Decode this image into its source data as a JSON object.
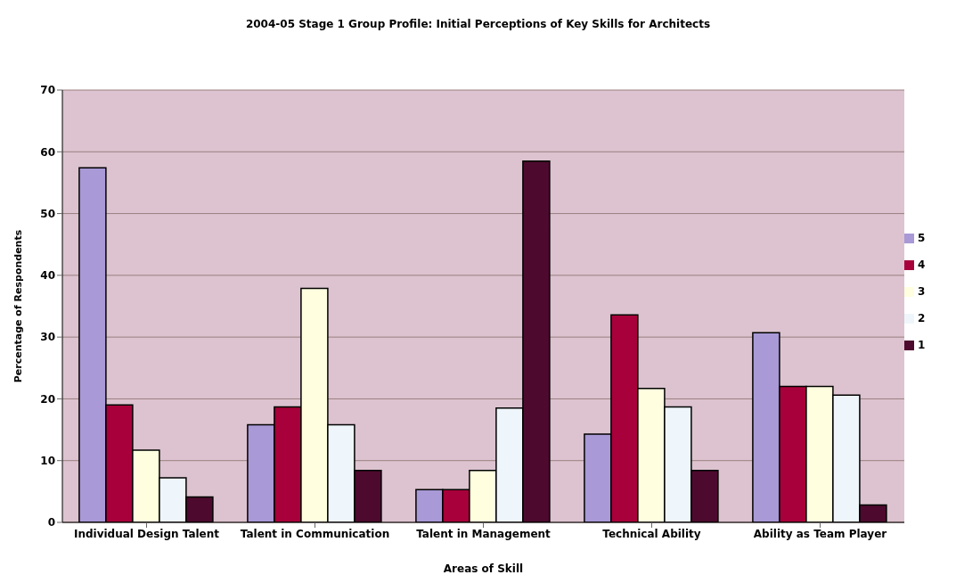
{
  "chart_data": {
    "type": "bar",
    "title": "2004-05 Stage 1 Group Profile: Initial Perceptions of Key Skills for Architects",
    "xlabel": "Areas of Skill",
    "ylabel": "Percentage of Respondents",
    "categories": [
      "Individual Design Talent",
      "Talent in Communication",
      "Talent in Management",
      "Technical Ability",
      "Ability as Team Player"
    ],
    "series": [
      {
        "name": "5",
        "color": "#a999d6",
        "values": [
          57.4,
          15.8,
          5.3,
          14.3,
          30.7
        ]
      },
      {
        "name": "4",
        "color": "#a8003a",
        "values": [
          19,
          18.7,
          5.3,
          33.6,
          22
        ]
      },
      {
        "name": "3",
        "color": "#ffffe0",
        "values": [
          11.7,
          37.9,
          8.4,
          21.7,
          22
        ]
      },
      {
        "name": "2",
        "color": "#eef6fb",
        "values": [
          7.2,
          15.8,
          18.5,
          18.7,
          20.6
        ]
      },
      {
        "name": "1",
        "color": "#4d0a2e",
        "values": [
          4.1,
          8.4,
          58.5,
          8.4,
          2.8
        ]
      }
    ],
    "ylim": [
      0,
      70
    ],
    "yticks": [
      0,
      10,
      20,
      30,
      40,
      50,
      60,
      70
    ],
    "grid": "y",
    "legend": "right"
  }
}
